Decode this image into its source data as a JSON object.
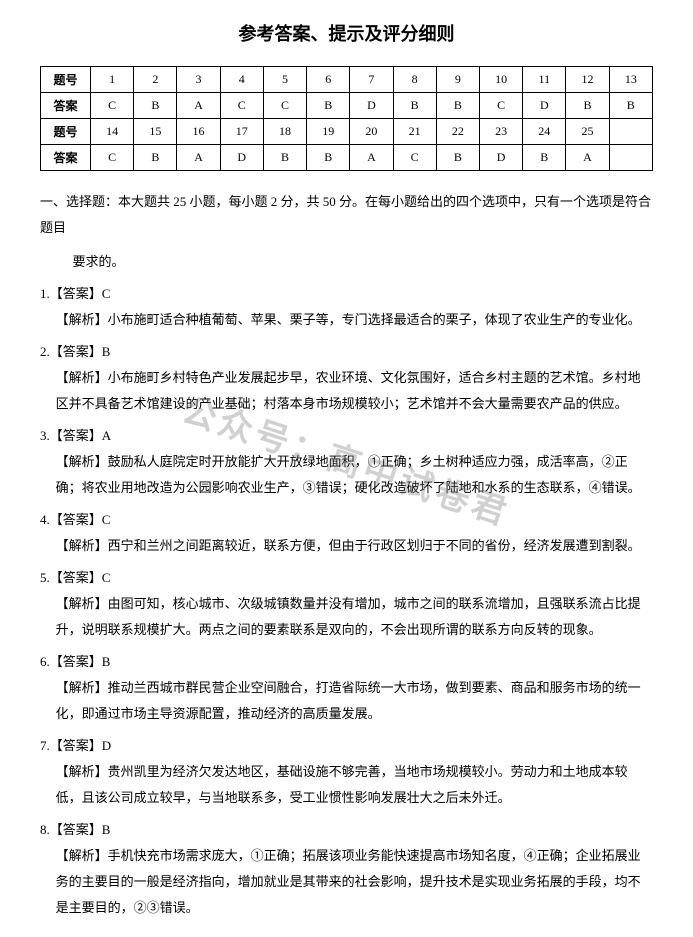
{
  "title": "参考答案、提示及评分细则",
  "table": {
    "label_qnum": "题号",
    "label_ans": "答案",
    "row1_nums": [
      "1",
      "2",
      "3",
      "4",
      "5",
      "6",
      "7",
      "8",
      "9",
      "10",
      "11",
      "12",
      "13"
    ],
    "row1_ans": [
      "C",
      "B",
      "A",
      "C",
      "C",
      "B",
      "D",
      "B",
      "B",
      "C",
      "D",
      "B",
      "B"
    ],
    "row2_nums": [
      "14",
      "15",
      "16",
      "17",
      "18",
      "19",
      "20",
      "21",
      "22",
      "23",
      "24",
      "25",
      ""
    ],
    "row2_ans": [
      "C",
      "B",
      "A",
      "D",
      "B",
      "B",
      "A",
      "C",
      "B",
      "D",
      "B",
      "A",
      ""
    ]
  },
  "section1_head": "一、选择题：本大题共 25 小题，每小题 2 分，共 50 分。在每小题给出的四个选项中，只有一个选项是符合题目",
  "section1_head2": "要求的。",
  "questions": [
    {
      "num": "1.",
      "ans": "【答案】C",
      "expl": "【解析】小布施町适合种植葡萄、苹果、栗子等，专门选择最适合的栗子，体现了农业生产的专业化。"
    },
    {
      "num": "2.",
      "ans": "【答案】B",
      "expl": "【解析】小布施町乡村特色产业发展起步早，农业环境、文化氛围好，适合乡村主题的艺术馆。乡村地区并不具备艺术馆建设的产业基础；村落本身市场规模较小；艺术馆并不会大量需要农产品的供应。"
    },
    {
      "num": "3.",
      "ans": "【答案】A",
      "expl": "【解析】鼓励私人庭院定时开放能扩大开放绿地面积，①正确；乡土树种适应力强，成活率高，②正确；将农业用地改造为公园影响农业生产，③错误；硬化改造破坏了陆地和水系的生态联系，④错误。"
    },
    {
      "num": "4.",
      "ans": "【答案】C",
      "expl": "【解析】西宁和兰州之间距离较近，联系方便，但由于行政区划归于不同的省份，经济发展遭到割裂。"
    },
    {
      "num": "5.",
      "ans": "【答案】C",
      "expl": "【解析】由图可知，核心城市、次级城镇数量并没有增加，城市之间的联系流增加，且强联系流占比提升，说明联系规模扩大。两点之间的要素联系是双向的，不会出现所谓的联系方向反转的现象。"
    },
    {
      "num": "6.",
      "ans": "【答案】B",
      "expl": "【解析】推动兰西城市群民营企业空间融合，打造省际统一大市场，做到要素、商品和服务市场的统一化，即通过市场主导资源配置，推动经济的高质量发展。"
    },
    {
      "num": "7.",
      "ans": "【答案】D",
      "expl": "【解析】贵州凯里为经济欠发达地区，基础设施不够完善，当地市场规模较小。劳动力和土地成本较低，且该公司成立较早，与当地联系多，受工业惯性影响发展壮大之后未外迁。"
    },
    {
      "num": "8.",
      "ans": "【答案】B",
      "expl": "【解析】手机快充市场需求庞大，①正确；拓展该项业务能快速提高市场知名度，④正确；企业拓展业务的主要目的一般是经济指向，增加就业是其带来的社会影响，提升技术是实现业务拓展的手段，均不是主要目的，②③错误。"
    }
  ],
  "watermark": "公众号：高中试卷君",
  "colors": {
    "text": "#000000",
    "bg": "#ffffff",
    "border": "#000000",
    "watermark": "rgba(120,120,120,0.35)"
  }
}
